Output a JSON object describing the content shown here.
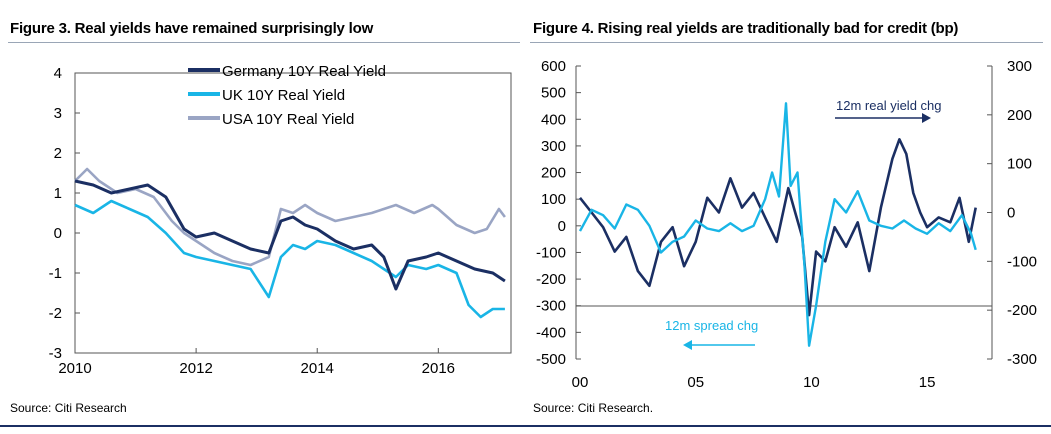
{
  "colors": {
    "germany": "#1b2f63",
    "uk": "#19b5e6",
    "usa": "#9aa5c4",
    "frame": "#555555"
  },
  "figures": {
    "fig3": {
      "title": "Figure 3. Real yields have remained surprisingly low",
      "source": "Source: Citi Research"
    },
    "fig4": {
      "title": "Figure 4. Rising real yields are traditionally bad for credit (bp)",
      "source": "Source: Citi Research."
    }
  },
  "chart_data": [
    {
      "type": "line",
      "title": "Figure 3. Real yields have remained surprisingly low",
      "xlabel": "",
      "ylabel": "",
      "xlim": [
        2010,
        2017.2
      ],
      "ylim": [
        -3,
        4
      ],
      "x_ticks": [
        "2010",
        "2012",
        "2014",
        "2016"
      ],
      "x_tick_values": [
        2010,
        2012,
        2014,
        2016
      ],
      "y_ticks": [
        "4",
        "3",
        "2",
        "1",
        "0",
        "-1",
        "-2",
        "-3"
      ],
      "y_tick_values": [
        4,
        3,
        2,
        1,
        0,
        -1,
        -2,
        -3
      ],
      "legend_position": "top-center",
      "series": [
        {
          "name": "Germany 10Y Real Yield",
          "color": "#1b2f63",
          "x": [
            2010.0,
            2010.3,
            2010.6,
            2010.9,
            2011.2,
            2011.5,
            2011.8,
            2012.0,
            2012.3,
            2012.6,
            2012.9,
            2013.2,
            2013.4,
            2013.6,
            2013.8,
            2014.0,
            2014.3,
            2014.6,
            2014.9,
            2015.1,
            2015.3,
            2015.5,
            2015.8,
            2016.0,
            2016.3,
            2016.6,
            2016.9,
            2017.1
          ],
          "values": [
            1.3,
            1.2,
            1.0,
            1.1,
            1.2,
            0.9,
            0.1,
            -0.1,
            0.0,
            -0.2,
            -0.4,
            -0.5,
            0.3,
            0.4,
            0.2,
            0.1,
            -0.2,
            -0.4,
            -0.3,
            -0.6,
            -1.4,
            -0.7,
            -0.6,
            -0.5,
            -0.7,
            -0.9,
            -1.0,
            -1.2
          ]
        },
        {
          "name": "UK 10Y Real Yield",
          "color": "#19b5e6",
          "x": [
            2010.0,
            2010.3,
            2010.6,
            2010.9,
            2011.2,
            2011.5,
            2011.8,
            2012.0,
            2012.3,
            2012.6,
            2012.9,
            2013.2,
            2013.4,
            2013.6,
            2013.8,
            2014.0,
            2014.3,
            2014.6,
            2014.9,
            2015.1,
            2015.3,
            2015.5,
            2015.8,
            2016.0,
            2016.3,
            2016.5,
            2016.7,
            2016.9,
            2017.1
          ],
          "values": [
            0.7,
            0.5,
            0.8,
            0.6,
            0.4,
            0.0,
            -0.5,
            -0.6,
            -0.7,
            -0.8,
            -0.9,
            -1.6,
            -0.6,
            -0.3,
            -0.4,
            -0.2,
            -0.3,
            -0.5,
            -0.7,
            -0.9,
            -1.1,
            -0.8,
            -0.9,
            -0.8,
            -1.0,
            -1.8,
            -2.1,
            -1.9,
            -1.9
          ]
        },
        {
          "name": "USA 10Y Real Yield",
          "color": "#9aa5c4",
          "x": [
            2010.0,
            2010.2,
            2010.4,
            2010.7,
            2011.0,
            2011.3,
            2011.6,
            2011.8,
            2012.0,
            2012.3,
            2012.6,
            2012.9,
            2013.2,
            2013.4,
            2013.6,
            2013.8,
            2014.0,
            2014.3,
            2014.6,
            2014.9,
            2015.1,
            2015.3,
            2015.6,
            2015.9,
            2016.0,
            2016.3,
            2016.6,
            2016.8,
            2017.0,
            2017.1
          ],
          "values": [
            1.3,
            1.6,
            1.3,
            1.0,
            1.1,
            0.9,
            0.3,
            0.0,
            -0.2,
            -0.5,
            -0.7,
            -0.8,
            -0.6,
            0.6,
            0.5,
            0.7,
            0.5,
            0.3,
            0.4,
            0.5,
            0.6,
            0.7,
            0.5,
            0.7,
            0.6,
            0.2,
            0.0,
            0.1,
            0.6,
            0.4
          ]
        }
      ]
    },
    {
      "type": "line",
      "title": "Figure 4. Rising real yields are traditionally bad for credit (bp)",
      "xlabel": "",
      "ylabel": "",
      "xlim": [
        2000,
        2017.5
      ],
      "ylim_left": [
        -500,
        600
      ],
      "ylim_right": [
        -300,
        300
      ],
      "x_ticks": [
        "00",
        "05",
        "10",
        "15"
      ],
      "x_tick_values": [
        2000,
        2005,
        2010,
        2015
      ],
      "y_ticks_left": [
        "600",
        "500",
        "400",
        "300",
        "200",
        "100",
        "0",
        "-100",
        "-200",
        "-300",
        "-400",
        "-500"
      ],
      "y_tick_values_left": [
        600,
        500,
        400,
        300,
        200,
        100,
        0,
        -100,
        -200,
        -300,
        -400,
        -500
      ],
      "y_ticks_right": [
        "300",
        "200",
        "100",
        "0",
        "-100",
        "-200",
        "-300"
      ],
      "y_tick_values_right": [
        300,
        200,
        100,
        0,
        -100,
        -200,
        -300
      ],
      "annotations": {
        "real_yield": "12m real yield chg",
        "spread": "12m spread chg"
      },
      "series": [
        {
          "name": "12m real yield chg",
          "axis": "right",
          "color": "#1b2f63",
          "x": [
            2000.0,
            2000.5,
            2001.0,
            2001.5,
            2002.0,
            2002.5,
            2003.0,
            2003.5,
            2004.0,
            2004.5,
            2005.0,
            2005.5,
            2006.0,
            2006.5,
            2007.0,
            2007.5,
            2008.0,
            2008.5,
            2009.0,
            2009.3,
            2009.6,
            2009.9,
            2010.2,
            2010.6,
            2011.0,
            2011.5,
            2012.0,
            2012.5,
            2013.0,
            2013.5,
            2013.8,
            2014.1,
            2014.4,
            2014.7,
            2015.0,
            2015.5,
            2016.0,
            2016.4,
            2016.8,
            2017.1
          ],
          "values": [
            30,
            0,
            -30,
            -80,
            -50,
            -120,
            -150,
            -60,
            -30,
            -110,
            -60,
            30,
            0,
            70,
            10,
            40,
            -10,
            -60,
            50,
            0,
            -50,
            -210,
            -80,
            -100,
            -30,
            -70,
            -20,
            -120,
            10,
            110,
            150,
            120,
            40,
            0,
            -30,
            -10,
            -20,
            30,
            -60,
            10
          ]
        },
        {
          "name": "12m spread chg",
          "axis": "left",
          "color": "#19b5e6",
          "x": [
            2000.0,
            2000.5,
            2001.0,
            2001.5,
            2002.0,
            2002.5,
            2003.0,
            2003.5,
            2004.0,
            2004.5,
            2005.0,
            2005.5,
            2006.0,
            2006.5,
            2007.0,
            2007.5,
            2008.0,
            2008.3,
            2008.6,
            2008.9,
            2009.1,
            2009.4,
            2009.7,
            2009.9,
            2010.2,
            2010.6,
            2011.0,
            2011.5,
            2012.0,
            2012.5,
            2013.0,
            2013.5,
            2014.0,
            2014.5,
            2015.0,
            2015.5,
            2016.0,
            2016.5,
            2016.9,
            2017.1
          ],
          "values": [
            -20,
            60,
            40,
            -10,
            80,
            60,
            0,
            -100,
            -60,
            -40,
            20,
            -10,
            -20,
            10,
            -20,
            0,
            100,
            200,
            110,
            460,
            150,
            200,
            -150,
            -450,
            -300,
            -60,
            100,
            50,
            130,
            20,
            0,
            -10,
            20,
            -10,
            -30,
            10,
            -20,
            40,
            -30,
            -90
          ]
        }
      ]
    }
  ]
}
